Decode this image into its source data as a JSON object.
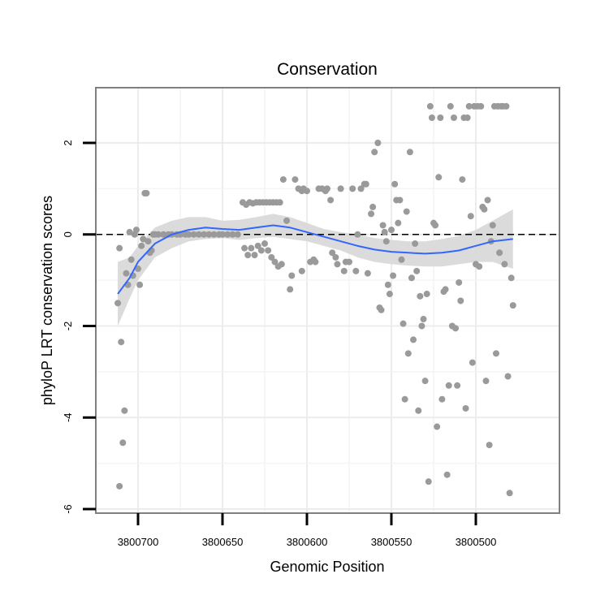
{
  "chart_data": {
    "type": "scatter",
    "title": "Conservation",
    "xlabel": "Genomic Position",
    "ylabel": "phyloP LRT conservation scores",
    "x_reversed": true,
    "xlim": [
      3800730,
      3800450
    ],
    "ylim": [
      -6,
      3.2
    ],
    "grid": true,
    "x_ticks": [
      3800700,
      3800650,
      3800600,
      3800550,
      3800500
    ],
    "x_tick_labels": [
      "3800700",
      "3800650",
      "3800600",
      "3800550",
      "3800500"
    ],
    "y_ticks": [
      -6,
      -4,
      -2,
      0,
      2
    ],
    "y_tick_labels": [
      "-6",
      "-4",
      "-2",
      "0",
      "2"
    ],
    "reference_line": {
      "y": 0,
      "style": "dashed",
      "color": "#000000"
    },
    "points_color": "#9a9a9a",
    "smooth_color": "#3366ff",
    "ribbon_color": "#d9d9d9",
    "points": [
      [
        3800712,
        -1.5
      ],
      [
        3800711,
        -0.3
      ],
      [
        3800710,
        -2.35
      ],
      [
        3800709,
        -4.55
      ],
      [
        3800708,
        -3.85
      ],
      [
        3800711,
        -5.5
      ],
      [
        3800707,
        -0.85
      ],
      [
        3800706,
        -1.1
      ],
      [
        3800705,
        0.05
      ],
      [
        3800704,
        -0.55
      ],
      [
        3800703,
        -0.9
      ],
      [
        3800702,
        0.0
      ],
      [
        3800701,
        0.1
      ],
      [
        3800700,
        -0.75
      ],
      [
        3800699,
        -1.1
      ],
      [
        3800698,
        -0.25
      ],
      [
        3800697,
        -0.1
      ],
      [
        3800696,
        0.9
      ],
      [
        3800695,
        0.9
      ],
      [
        3800694,
        -0.15
      ],
      [
        3800693,
        -0.4
      ],
      [
        3800692,
        -0.35
      ],
      [
        3800691,
        0.0
      ],
      [
        3800690,
        0.0
      ],
      [
        3800688,
        0.0
      ],
      [
        3800685,
        0.0
      ],
      [
        3800682,
        0.0
      ],
      [
        3800680,
        0.0
      ],
      [
        3800677,
        0.0
      ],
      [
        3800675,
        0.0
      ],
      [
        3800672,
        0.0
      ],
      [
        3800670,
        0.0
      ],
      [
        3800667,
        0.0
      ],
      [
        3800664,
        0.0
      ],
      [
        3800661,
        0.0
      ],
      [
        3800658,
        0.0
      ],
      [
        3800655,
        0.0
      ],
      [
        3800652,
        0.0
      ],
      [
        3800650,
        0.0
      ],
      [
        3800647,
        0.0
      ],
      [
        3800644,
        0.0
      ],
      [
        3800641,
        0.0
      ],
      [
        3800638,
        0.7
      ],
      [
        3800636,
        0.65
      ],
      [
        3800634,
        0.7
      ],
      [
        3800632,
        0.68
      ],
      [
        3800630,
        0.7
      ],
      [
        3800628,
        0.7
      ],
      [
        3800626,
        0.7
      ],
      [
        3800624,
        0.7
      ],
      [
        3800622,
        0.7
      ],
      [
        3800620,
        0.7
      ],
      [
        3800618,
        0.7
      ],
      [
        3800616,
        0.7
      ],
      [
        3800637,
        -0.3
      ],
      [
        3800635,
        -0.45
      ],
      [
        3800633,
        -0.3
      ],
      [
        3800631,
        -0.45
      ],
      [
        3800629,
        -0.25
      ],
      [
        3800627,
        -0.35
      ],
      [
        3800625,
        -0.2
      ],
      [
        3800623,
        -0.35
      ],
      [
        3800621,
        -0.5
      ],
      [
        3800619,
        -0.6
      ],
      [
        3800617,
        -0.7
      ],
      [
        3800615,
        -0.65
      ],
      [
        3800614,
        1.2
      ],
      [
        3800612,
        0.3
      ],
      [
        3800610,
        -1.2
      ],
      [
        3800609,
        -0.9
      ],
      [
        3800607,
        1.2
      ],
      [
        3800605,
        1.0
      ],
      [
        3800603,
        0.95
      ],
      [
        3800602,
        1.0
      ],
      [
        3800600,
        0.95
      ],
      [
        3800603,
        -0.8
      ],
      [
        3800598,
        -0.6
      ],
      [
        3800596,
        -0.55
      ],
      [
        3800595,
        -0.6
      ],
      [
        3800593,
        1.0
      ],
      [
        3800591,
        1.0
      ],
      [
        3800589,
        0.95
      ],
      [
        3800588,
        1.0
      ],
      [
        3800586,
        0.75
      ],
      [
        3800585,
        -0.4
      ],
      [
        3800583,
        -0.5
      ],
      [
        3800582,
        -0.65
      ],
      [
        3800580,
        1.0
      ],
      [
        3800578,
        -0.8
      ],
      [
        3800577,
        -0.6
      ],
      [
        3800575,
        -0.6
      ],
      [
        3800573,
        1.0
      ],
      [
        3800571,
        -0.8
      ],
      [
        3800570,
        0.0
      ],
      [
        3800568,
        1.0
      ],
      [
        3800566,
        1.1
      ],
      [
        3800565,
        1.1
      ],
      [
        3800564,
        -0.85
      ],
      [
        3800562,
        0.45
      ],
      [
        3800561,
        0.6
      ],
      [
        3800560,
        1.8
      ],
      [
        3800558,
        2.0
      ],
      [
        3800557,
        -1.6
      ],
      [
        3800556,
        -1.65
      ],
      [
        3800555,
        0.2
      ],
      [
        3800554,
        0.05
      ],
      [
        3800553,
        -0.15
      ],
      [
        3800552,
        -1.1
      ],
      [
        3800551,
        -1.3
      ],
      [
        3800550,
        0.1
      ],
      [
        3800549,
        -0.9
      ],
      [
        3800548,
        1.1
      ],
      [
        3800547,
        0.75
      ],
      [
        3800546,
        0.25
      ],
      [
        3800545,
        0.75
      ],
      [
        3800544,
        -0.55
      ],
      [
        3800543,
        -1.95
      ],
      [
        3800542,
        -3.6
      ],
      [
        3800541,
        0.5
      ],
      [
        3800540,
        -2.6
      ],
      [
        3800539,
        1.8
      ],
      [
        3800538,
        -0.95
      ],
      [
        3800537,
        -2.3
      ],
      [
        3800536,
        -0.2
      ],
      [
        3800535,
        -0.8
      ],
      [
        3800534,
        -3.85
      ],
      [
        3800533,
        -1.35
      ],
      [
        3800532,
        -2.0
      ],
      [
        3800531,
        -1.85
      ],
      [
        3800530,
        -3.2
      ],
      [
        3800529,
        -1.3
      ],
      [
        3800528,
        -5.4
      ],
      [
        3800527,
        2.8
      ],
      [
        3800526,
        2.55
      ],
      [
        3800525,
        0.25
      ],
      [
        3800524,
        0.2
      ],
      [
        3800523,
        -4.2
      ],
      [
        3800522,
        1.25
      ],
      [
        3800521,
        2.55
      ],
      [
        3800520,
        -3.6
      ],
      [
        3800519,
        -1.25
      ],
      [
        3800518,
        -1.2
      ],
      [
        3800517,
        -5.25
      ],
      [
        3800516,
        -3.3
      ],
      [
        3800515,
        2.8
      ],
      [
        3800514,
        -2.0
      ],
      [
        3800513,
        2.55
      ],
      [
        3800512,
        -2.05
      ],
      [
        3800511,
        -3.3
      ],
      [
        3800510,
        -1.05
      ],
      [
        3800509,
        -1.45
      ],
      [
        3800508,
        1.2
      ],
      [
        3800507,
        2.55
      ],
      [
        3800506,
        -3.8
      ],
      [
        3800505,
        2.55
      ],
      [
        3800504,
        2.8
      ],
      [
        3800503,
        0.4
      ],
      [
        3800502,
        -2.8
      ],
      [
        3800501,
        2.8
      ],
      [
        3800500,
        -0.65
      ],
      [
        3800499,
        2.8
      ],
      [
        3800498,
        -0.7
      ],
      [
        3800497,
        2.8
      ],
      [
        3800496,
        0.6
      ],
      [
        3800495,
        0.55
      ],
      [
        3800494,
        -3.2
      ],
      [
        3800493,
        0.75
      ],
      [
        3800492,
        -4.6
      ],
      [
        3800491,
        -0.15
      ],
      [
        3800490,
        0.2
      ],
      [
        3800489,
        2.8
      ],
      [
        3800488,
        -2.6
      ],
      [
        3800487,
        2.8
      ],
      [
        3800486,
        -0.4
      ],
      [
        3800485,
        2.8
      ],
      [
        3800484,
        2.8
      ],
      [
        3800483,
        -0.65
      ],
      [
        3800482,
        2.8
      ],
      [
        3800481,
        -3.1
      ],
      [
        3800480,
        -5.65
      ],
      [
        3800479,
        -0.95
      ],
      [
        3800478,
        -1.55
      ]
    ],
    "smooth": [
      [
        3800712,
        -1.3
      ],
      [
        3800705,
        -0.95
      ],
      [
        3800700,
        -0.6
      ],
      [
        3800690,
        -0.2
      ],
      [
        3800680,
        0.0
      ],
      [
        3800670,
        0.1
      ],
      [
        3800660,
        0.15
      ],
      [
        3800650,
        0.12
      ],
      [
        3800640,
        0.1
      ],
      [
        3800630,
        0.15
      ],
      [
        3800620,
        0.2
      ],
      [
        3800610,
        0.15
      ],
      [
        3800600,
        0.05
      ],
      [
        3800590,
        -0.05
      ],
      [
        3800580,
        -0.15
      ],
      [
        3800570,
        -0.25
      ],
      [
        3800560,
        -0.33
      ],
      [
        3800550,
        -0.38
      ],
      [
        3800540,
        -0.4
      ],
      [
        3800530,
        -0.42
      ],
      [
        3800520,
        -0.4
      ],
      [
        3800510,
        -0.35
      ],
      [
        3800500,
        -0.25
      ],
      [
        3800490,
        -0.15
      ],
      [
        3800478,
        -0.1
      ]
    ],
    "ribbon_upper": [
      [
        3800712,
        -0.6
      ],
      [
        3800705,
        -0.5
      ],
      [
        3800700,
        -0.25
      ],
      [
        3800690,
        0.15
      ],
      [
        3800680,
        0.3
      ],
      [
        3800670,
        0.38
      ],
      [
        3800660,
        0.38
      ],
      [
        3800650,
        0.3
      ],
      [
        3800640,
        0.32
      ],
      [
        3800630,
        0.38
      ],
      [
        3800620,
        0.45
      ],
      [
        3800610,
        0.38
      ],
      [
        3800600,
        0.25
      ],
      [
        3800590,
        0.12
      ],
      [
        3800580,
        0.05
      ],
      [
        3800570,
        0.0
      ],
      [
        3800560,
        -0.08
      ],
      [
        3800550,
        -0.12
      ],
      [
        3800540,
        -0.15
      ],
      [
        3800530,
        -0.15
      ],
      [
        3800520,
        -0.1
      ],
      [
        3800510,
        -0.03
      ],
      [
        3800500,
        0.1
      ],
      [
        3800490,
        0.3
      ],
      [
        3800478,
        0.55
      ]
    ],
    "ribbon_lower": [
      [
        3800712,
        -2.0
      ],
      [
        3800705,
        -1.4
      ],
      [
        3800700,
        -1.0
      ],
      [
        3800690,
        -0.5
      ],
      [
        3800680,
        -0.3
      ],
      [
        3800670,
        -0.15
      ],
      [
        3800660,
        -0.1
      ],
      [
        3800650,
        -0.08
      ],
      [
        3800640,
        -0.12
      ],
      [
        3800630,
        -0.08
      ],
      [
        3800620,
        -0.05
      ],
      [
        3800610,
        -0.1
      ],
      [
        3800600,
        -0.15
      ],
      [
        3800590,
        -0.25
      ],
      [
        3800580,
        -0.35
      ],
      [
        3800570,
        -0.5
      ],
      [
        3800560,
        -0.6
      ],
      [
        3800550,
        -0.65
      ],
      [
        3800540,
        -0.68
      ],
      [
        3800530,
        -0.7
      ],
      [
        3800520,
        -0.7
      ],
      [
        3800510,
        -0.65
      ],
      [
        3800500,
        -0.6
      ],
      [
        3800490,
        -0.6
      ],
      [
        3800478,
        -0.75
      ]
    ]
  }
}
